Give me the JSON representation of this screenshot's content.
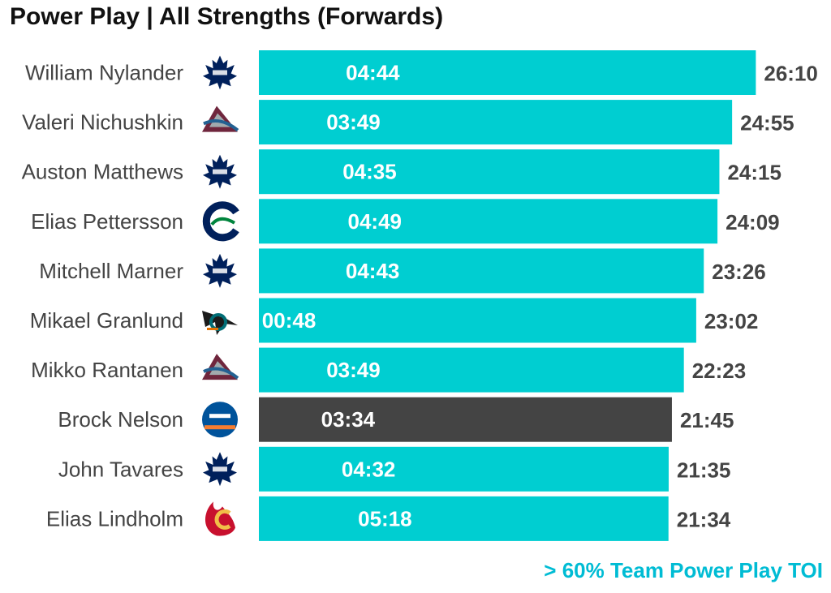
{
  "chart_data": {
    "type": "bar",
    "orientation": "horizontal",
    "title": "Power Play | All Strengths (Forwards)",
    "caption": "> 60% Team Power Play TOI",
    "colors": {
      "highlight": "#00CED1",
      "other": "#444444",
      "caption": "#00BCD4",
      "total_label": "#444444",
      "pp_label": "#ffffff"
    },
    "rows": [
      {
        "player": "William Nylander",
        "team_logo": "maple-leafs-logo",
        "total_toi": "26:10",
        "total_min": 26.17,
        "pp_toi": "04:44",
        "pp_min": 4.73,
        "over_60pct": true
      },
      {
        "player": "Valeri Nichushkin",
        "team_logo": "avalanche-logo",
        "total_toi": "24:55",
        "total_min": 24.92,
        "pp_toi": "03:49",
        "pp_min": 3.82,
        "over_60pct": true
      },
      {
        "player": "Auston Matthews",
        "team_logo": "maple-leafs-logo",
        "total_toi": "24:15",
        "total_min": 24.25,
        "pp_toi": "04:35",
        "pp_min": 4.58,
        "over_60pct": true
      },
      {
        "player": "Elias Pettersson",
        "team_logo": "canucks-logo",
        "total_toi": "24:09",
        "total_min": 24.15,
        "pp_toi": "04:49",
        "pp_min": 4.82,
        "over_60pct": true
      },
      {
        "player": "Mitchell Marner",
        "team_logo": "maple-leafs-logo",
        "total_toi": "23:26",
        "total_min": 23.43,
        "pp_toi": "04:43",
        "pp_min": 4.72,
        "over_60pct": true
      },
      {
        "player": "Mikael Granlund",
        "team_logo": "sharks-logo",
        "total_toi": "23:02",
        "total_min": 23.03,
        "pp_toi": "00:48",
        "pp_min": 0.8,
        "over_60pct": true
      },
      {
        "player": "Mikko Rantanen",
        "team_logo": "avalanche-logo",
        "total_toi": "22:23",
        "total_min": 22.38,
        "pp_toi": "03:49",
        "pp_min": 3.82,
        "over_60pct": true
      },
      {
        "player": "Brock Nelson",
        "team_logo": "islanders-logo",
        "total_toi": "21:45",
        "total_min": 21.75,
        "pp_toi": "03:34",
        "pp_min": 3.57,
        "over_60pct": false
      },
      {
        "player": "John Tavares",
        "team_logo": "maple-leafs-logo",
        "total_toi": "21:35",
        "total_min": 21.58,
        "pp_toi": "04:32",
        "pp_min": 4.53,
        "over_60pct": true
      },
      {
        "player": "Elias Lindholm",
        "team_logo": "flames-logo",
        "total_toi": "21:34",
        "total_min": 21.57,
        "pp_toi": "05:18",
        "pp_min": 5.3,
        "over_60pct": true
      }
    ]
  }
}
